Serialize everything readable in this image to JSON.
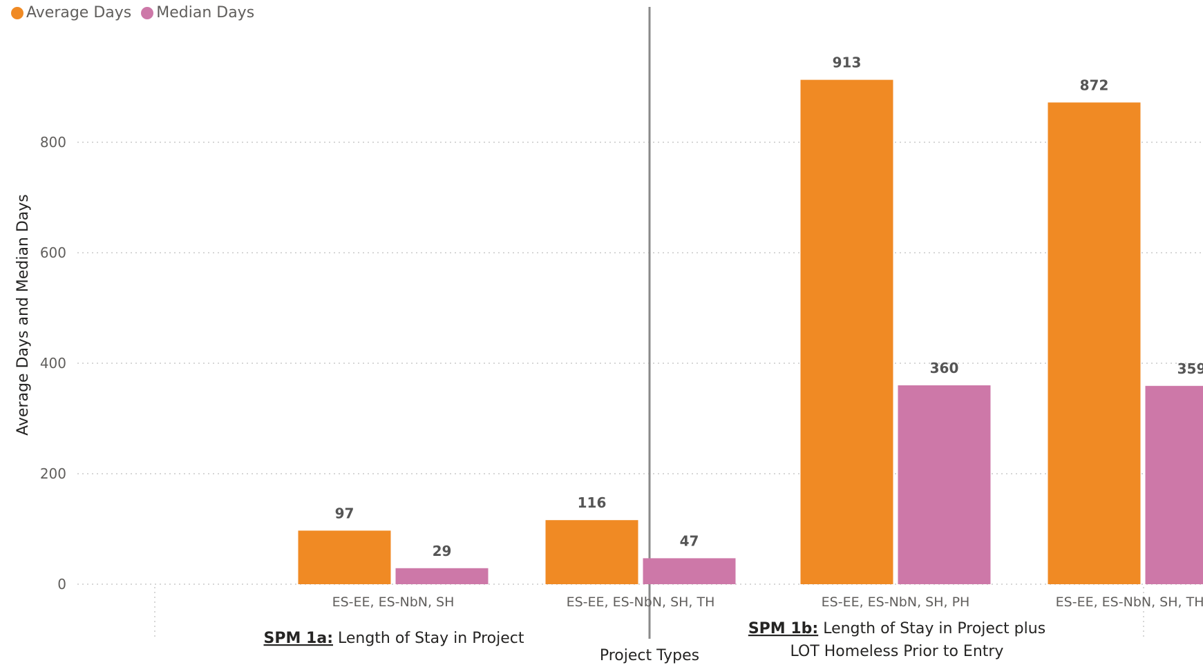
{
  "chart_data": {
    "type": "bar",
    "xlabel": "Project Types",
    "ylabel": "Average Days and Median Days",
    "ylim": [
      0,
      1000
    ],
    "yticks": [
      0,
      200,
      400,
      600,
      800
    ],
    "grid": true,
    "legend_position": "top-left",
    "categories": [
      "ES-EE, ES-NbN, SH",
      "ES-EE, ES-NbN, SH, TH",
      "ES-EE, ES-NbN, SH, PH",
      "ES-EE, ES-NbN, SH, TH, PH"
    ],
    "groups": [
      {
        "code": "SPM 1a:",
        "label_lines": [
          "Length of Stay in Project"
        ],
        "categories": [
          "ES-EE, ES-NbN, SH",
          "ES-EE, ES-NbN, SH, TH"
        ]
      },
      {
        "code": "SPM 1b:",
        "label_lines": [
          "Length of Stay in Project plus",
          "LOT Homeless Prior to Entry"
        ],
        "categories": [
          "ES-EE, ES-NbN, SH, PH",
          "ES-EE, ES-NbN, SH, TH, PH"
        ]
      }
    ],
    "series": [
      {
        "name": "Average Days",
        "color": "#f08a24",
        "values": [
          97,
          116,
          913,
          872
        ]
      },
      {
        "name": "Median Days",
        "color": "#cd78a8",
        "values": [
          29,
          47,
          360,
          359
        ]
      }
    ]
  }
}
